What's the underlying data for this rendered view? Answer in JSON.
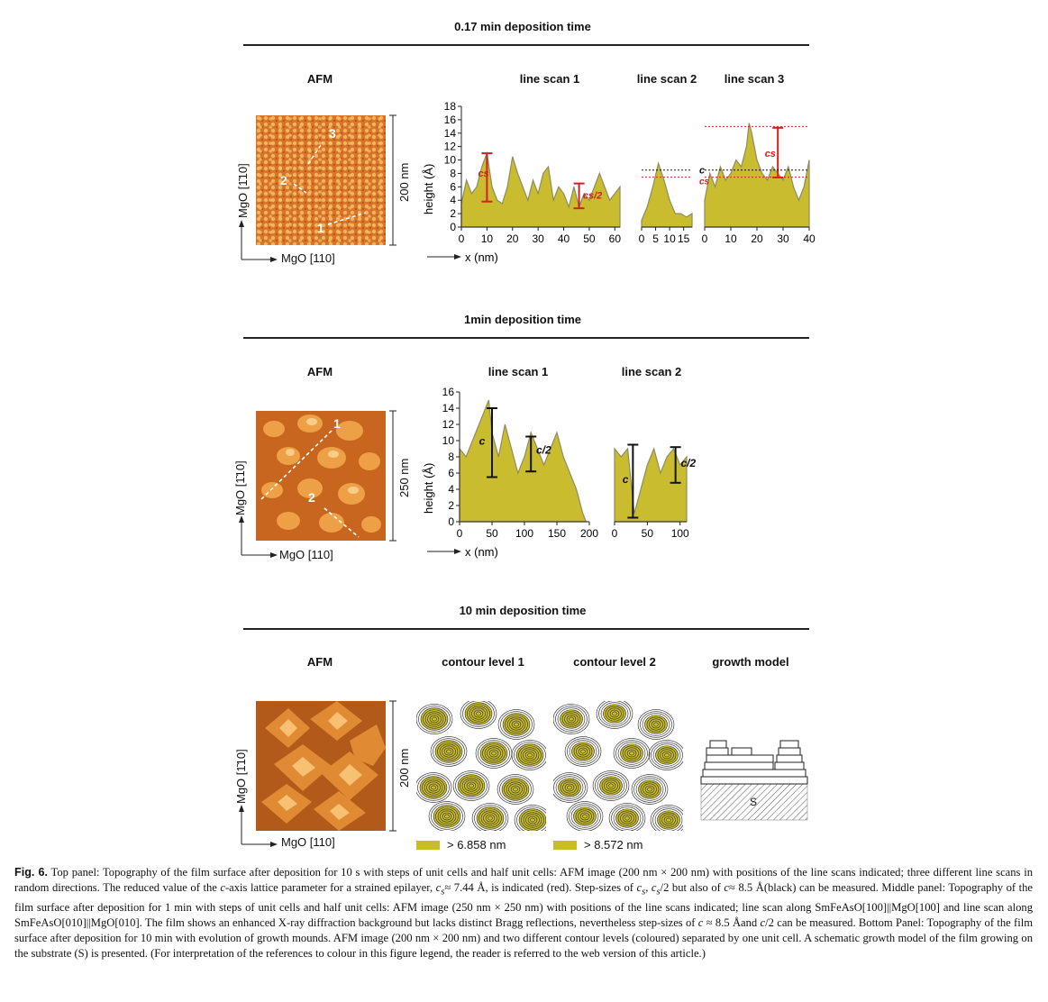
{
  "panels": {
    "top": {
      "title": "0.17 min deposition time",
      "afm_label": "AFM",
      "scans": [
        "line scan 1",
        "line scan 2",
        "line scan 3"
      ],
      "axis_y": "MgO [1̄10]",
      "axis_x": "MgO [110]",
      "scale": "200 nm",
      "markers": [
        "1",
        "2",
        "3"
      ]
    },
    "middle": {
      "title": "1min deposition time",
      "afm_label": "AFM",
      "scans": [
        "line scan 1",
        "line scan 2"
      ],
      "axis_y": "MgO [1̄10]",
      "axis_x": "MgO [110]",
      "scale": "250 nm",
      "markers": [
        "1",
        "2"
      ]
    },
    "bottom": {
      "title": "10 min deposition time",
      "afm_label": "AFM",
      "contour1": "contour level 1",
      "contour2": "contour level 2",
      "growth": "growth model",
      "axis_y": "MgO [1̄10]",
      "axis_x": "MgO [110]",
      "scale": "200 nm",
      "legend1": "> 6.858 nm",
      "legend2": "> 8.572 nm",
      "substrate": "S"
    }
  },
  "chart_labels": {
    "ylabel": "height (Å)",
    "xlabel": "x (nm)",
    "c": "c",
    "cs": "cs",
    "c_half": "c/2",
    "cs_half": "cs/2"
  },
  "chart_data": [
    {
      "type": "area",
      "name": "top line scan 1",
      "ylabel": "height (Å)",
      "ylim": [
        0,
        18
      ],
      "xlim": [
        0,
        62
      ],
      "yticks": [
        0,
        2,
        4,
        6,
        8,
        10,
        12,
        14,
        16,
        18
      ],
      "xticks": [
        0,
        10,
        20,
        30,
        40,
        50,
        60
      ],
      "x": [
        0,
        2,
        4,
        6,
        8,
        10,
        12,
        14,
        16,
        18,
        20,
        22,
        24,
        26,
        28,
        30,
        32,
        34,
        36,
        38,
        40,
        42,
        44,
        46,
        48,
        50,
        52,
        54,
        56,
        58,
        60,
        62
      ],
      "y": [
        3.5,
        7,
        5,
        6,
        9,
        11,
        6,
        4,
        3.5,
        6,
        10.5,
        8,
        6,
        4,
        7,
        5,
        8,
        9,
        4,
        6,
        5,
        3,
        6,
        3,
        5,
        4,
        6,
        8,
        6,
        4,
        5,
        6
      ]
    },
    {
      "type": "area",
      "name": "top line scan 2",
      "ylim": [
        0,
        18
      ],
      "xlim": [
        0,
        18
      ],
      "xticks": [
        0,
        5,
        10,
        15
      ],
      "x": [
        0,
        2,
        4,
        6,
        8,
        10,
        12,
        14,
        16,
        18
      ],
      "y": [
        1,
        3,
        6,
        9.5,
        7,
        4,
        2,
        2,
        1.5,
        2
      ]
    },
    {
      "type": "area",
      "name": "top line scan 3",
      "ylim": [
        0,
        18
      ],
      "xlim": [
        0,
        40
      ],
      "xticks": [
        0,
        10,
        20,
        30,
        40
      ],
      "x": [
        0,
        2,
        4,
        6,
        8,
        10,
        12,
        14,
        16,
        17,
        18,
        20,
        22,
        24,
        26,
        28,
        30,
        32,
        34,
        36,
        38,
        40
      ],
      "y": [
        4,
        8,
        6,
        9,
        7,
        8,
        10,
        9,
        12,
        15.5,
        14,
        10,
        8,
        7,
        9,
        8,
        7,
        9,
        6,
        4,
        6,
        10
      ]
    },
    {
      "type": "area",
      "name": "middle line scan 1",
      "ylabel": "height (Å)",
      "ylim": [
        0,
        16
      ],
      "xlim": [
        0,
        200
      ],
      "yticks": [
        0,
        2,
        4,
        6,
        8,
        10,
        12,
        14,
        16
      ],
      "xticks": [
        0,
        50,
        100,
        150,
        200
      ],
      "x": [
        0,
        10,
        20,
        30,
        40,
        45,
        50,
        60,
        70,
        80,
        90,
        100,
        110,
        120,
        130,
        140,
        150,
        160,
        170,
        180,
        190,
        195
      ],
      "y": [
        9,
        8,
        10,
        12,
        14,
        15,
        11,
        8,
        12,
        9,
        6,
        8,
        11,
        9,
        7,
        9,
        11,
        8,
        6,
        4,
        1,
        0
      ]
    },
    {
      "type": "area",
      "name": "middle line scan 2",
      "ylim": [
        0,
        16
      ],
      "xlim": [
        0,
        110
      ],
      "xticks": [
        0,
        50,
        100
      ],
      "x": [
        0,
        10,
        20,
        25,
        30,
        40,
        50,
        60,
        70,
        80,
        90,
        100,
        110
      ],
      "y": [
        9,
        8,
        9,
        5,
        1,
        4,
        7,
        9,
        6,
        8,
        9,
        7,
        8
      ]
    }
  ]
}
